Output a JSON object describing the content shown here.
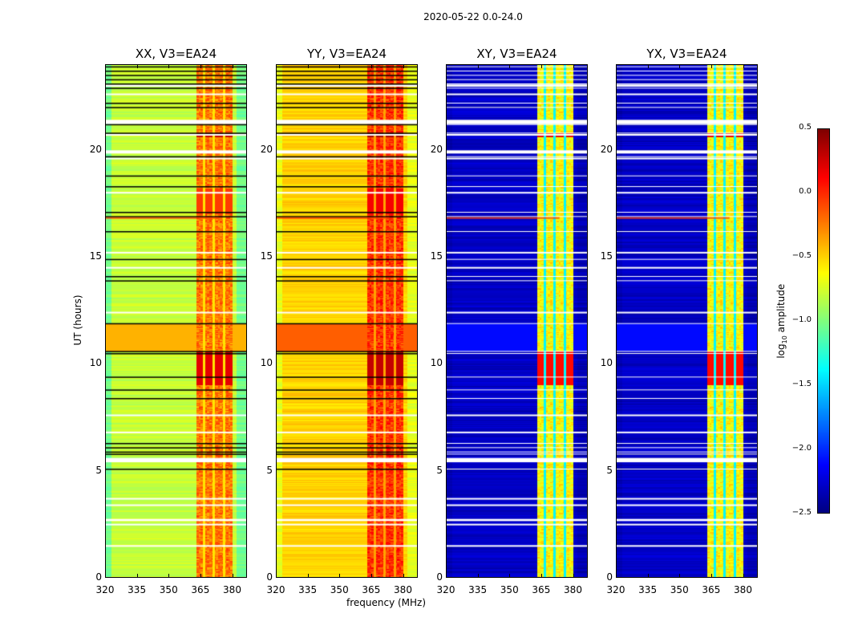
{
  "chart_data": {
    "type": "heatmap",
    "title": "2020-05-22 0.0-24.0",
    "xlabel": "frequency (MHz)",
    "ylabel": "UT (hours)",
    "xlim": [
      320,
      387
    ],
    "ylim": [
      0,
      24
    ],
    "xticks": [
      "320",
      "335",
      "350",
      "365",
      "380"
    ],
    "yticks": [
      "0",
      "5",
      "10",
      "15",
      "20"
    ],
    "colorbar": {
      "label_main": "log",
      "label_sub": "10",
      "label_rest": " amplitude",
      "range": [
        -2.5,
        0.5
      ],
      "ticks": [
        "0.5",
        "0.0",
        "−0.5",
        "−1.0",
        "−1.5",
        "−2.0",
        "−2.5"
      ],
      "colormap": "jet"
    },
    "panels": [
      {
        "title": "XX, V3=EA24",
        "base": -0.8,
        "edge": -1.05,
        "band": -0.25,
        "band_gap": -0.55,
        "mid_block": -0.4,
        "hot": 0.2,
        "flag_color": "#000000"
      },
      {
        "title": "YY, V3=EA24",
        "base": -0.5,
        "edge": -0.7,
        "band": -0.05,
        "band_gap": -0.35,
        "mid_block": -0.15,
        "hot": 0.3,
        "flag_color": "#000000"
      },
      {
        "title": "XY, V3=EA24",
        "base": -2.3,
        "edge": -2.35,
        "band": -0.65,
        "band_gap": -1.4,
        "mid_block": -2.1,
        "hot": 0.1,
        "flag_color": "#ffffff"
      },
      {
        "title": "YX, V3=EA24",
        "base": -2.3,
        "edge": -2.35,
        "band": -0.65,
        "band_gap": -1.4,
        "mid_block": -2.1,
        "hot": 0.1,
        "flag_color": "#ffffff"
      }
    ],
    "rfi_band_MHz": [
      [
        363,
        366
      ],
      [
        367,
        370.5
      ],
      [
        371.5,
        375.5
      ],
      [
        376.5,
        380
      ]
    ],
    "flagged_lines_hours": [
      23.9,
      23.7,
      23.5,
      23.3,
      23.1,
      22.9,
      22.2,
      22.0,
      21.2,
      20.8,
      19.7,
      18.8,
      18.3,
      17.1,
      16.9,
      16.2,
      14.9,
      14.1,
      13.9,
      11.9,
      10.6,
      10.5,
      9.4,
      8.8,
      8.4,
      6.3,
      6.1,
      5.9,
      5.8,
      5.1
    ],
    "gaps_hours": [
      [
        23.0,
        0.1
      ],
      [
        22.6,
        0.06
      ],
      [
        21.3,
        0.2
      ],
      [
        20.7,
        0.08
      ],
      [
        19.9,
        0.15
      ],
      [
        19.6,
        0.06
      ],
      [
        18.0,
        0.06
      ],
      [
        15.2,
        0.06
      ],
      [
        14.5,
        0.05
      ],
      [
        12.4,
        0.06
      ],
      [
        7.6,
        0.06
      ],
      [
        6.8,
        0.06
      ],
      [
        5.5,
        0.2
      ],
      [
        3.7,
        0.06
      ],
      [
        3.4,
        0.06
      ],
      [
        2.7,
        0.1
      ],
      [
        2.5,
        0.05
      ],
      [
        1.5,
        0.05
      ]
    ]
  }
}
